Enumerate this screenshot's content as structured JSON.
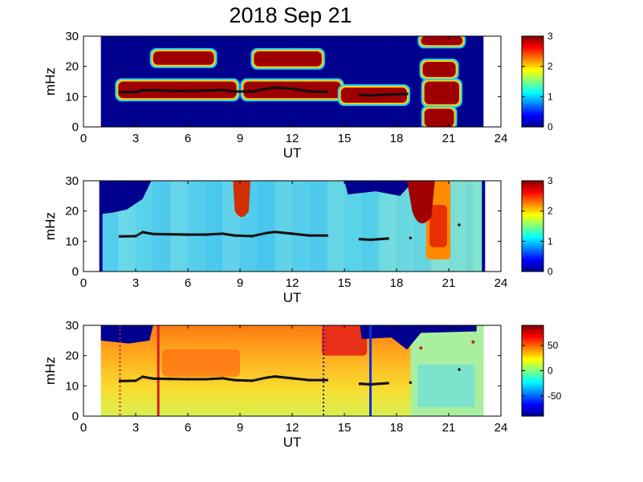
{
  "figure": {
    "title": "2018 Sep 21"
  },
  "chart_data": [
    {
      "type": "heatmap",
      "xlabel": "UT",
      "ylabel": "mHz",
      "xlim": [
        0,
        24
      ],
      "ylim": [
        0,
        30
      ],
      "xticks": [
        "0",
        "3",
        "6",
        "9",
        "12",
        "15",
        "18",
        "21",
        "24"
      ],
      "yticks": [
        "0",
        "10",
        "20",
        "30"
      ],
      "colorbar": {
        "min": 0,
        "max": 3,
        "ticks": [
          "0",
          "1",
          "2",
          "3"
        ]
      },
      "data_coverage_ut": [
        1,
        23
      ],
      "high_power_regions": [
        {
          "ut": [
            2.0,
            8.8
          ],
          "mhz": [
            9.5,
            15
          ],
          "value": 3
        },
        {
          "ut": [
            4.0,
            7.5
          ],
          "mhz": [
            20.5,
            25
          ],
          "value": 3
        },
        {
          "ut": [
            9.2,
            14.8
          ],
          "mhz": [
            9.5,
            15
          ],
          "value": 3
        },
        {
          "ut": [
            9.8,
            13.7
          ],
          "mhz": [
            20,
            25
          ],
          "value": 3
        },
        {
          "ut": [
            14.8,
            18.6
          ],
          "mhz": [
            8,
            13
          ],
          "value": 3
        },
        {
          "ut": [
            19.6,
            21.6
          ],
          "mhz": [
            7.5,
            15
          ],
          "value": 3
        },
        {
          "ut": [
            19.6,
            21.3
          ],
          "mhz": [
            0,
            6
          ],
          "value": 3
        },
        {
          "ut": [
            19.5,
            21.4
          ],
          "mhz": [
            16.5,
            21.5
          ],
          "value": 3
        },
        {
          "ut": [
            19.4,
            21.8
          ],
          "mhz": [
            27,
            30
          ],
          "value": 3
        }
      ],
      "frequency_trace": [
        [
          2.1,
          11.5
        ],
        [
          3.0,
          11.5
        ],
        [
          3.4,
          12.1
        ],
        [
          4.2,
          12.1
        ],
        [
          5.0,
          11.9
        ],
        [
          6.0,
          11.9
        ],
        [
          7.0,
          12.0
        ],
        [
          8.0,
          12.2
        ],
        [
          8.7,
          11.7
        ],
        [
          9.7,
          11.7
        ],
        [
          10.3,
          12.4
        ],
        [
          11.0,
          13.0
        ],
        [
          12.0,
          12.6
        ],
        [
          13.0,
          11.7
        ],
        [
          14.0,
          11.6
        ],
        [
          15.9,
          10.6
        ],
        [
          16.5,
          10.4
        ],
        [
          17.5,
          10.7
        ],
        [
          18.6,
          10.9
        ]
      ]
    },
    {
      "type": "heatmap",
      "xlabel": "UT",
      "ylabel": "mHz",
      "xlim": [
        0,
        24
      ],
      "ylim": [
        0,
        30
      ],
      "xticks": [
        "0",
        "3",
        "6",
        "9",
        "12",
        "15",
        "18",
        "21",
        "24"
      ],
      "yticks": [
        "0",
        "10",
        "20",
        "30"
      ],
      "colorbar": {
        "min": 0,
        "max": 3,
        "ticks": [
          "0",
          "1",
          "2",
          "3"
        ]
      },
      "data_coverage_ut": [
        1,
        23
      ],
      "high_power_regions": [
        {
          "ut": [
            8.6,
            9.6
          ],
          "mhz": [
            17,
            30
          ],
          "value": 3
        },
        {
          "ut": [
            18.6,
            20.2
          ],
          "mhz": [
            14,
            30
          ],
          "value": 3
        },
        {
          "ut": [
            19.7,
            21.1
          ],
          "mhz": [
            4,
            30
          ],
          "value": 2.5
        }
      ],
      "frequency_trace": [
        [
          2.1,
          11.6
        ],
        [
          3.0,
          11.7
        ],
        [
          3.4,
          13.0
        ],
        [
          4.0,
          12.4
        ],
        [
          5.0,
          12.3
        ],
        [
          6.0,
          12.2
        ],
        [
          7.0,
          12.2
        ],
        [
          8.0,
          12.5
        ],
        [
          8.7,
          11.9
        ],
        [
          9.7,
          11.7
        ],
        [
          10.5,
          12.7
        ],
        [
          11.0,
          13.1
        ],
        [
          12.0,
          12.5
        ],
        [
          13.0,
          11.9
        ],
        [
          14.0,
          11.9
        ],
        [
          15.9,
          10.7
        ],
        [
          16.5,
          10.5
        ],
        [
          17.5,
          10.9
        ],
        [
          18.8,
          11.1
        ],
        [
          21.6,
          15.4
        ]
      ]
    },
    {
      "type": "heatmap",
      "xlabel": "UT",
      "ylabel": "mHz",
      "xlim": [
        0,
        24
      ],
      "ylim": [
        0,
        30
      ],
      "xticks": [
        "0",
        "3",
        "6",
        "9",
        "12",
        "15",
        "18",
        "21",
        "24"
      ],
      "yticks": [
        "0",
        "10",
        "20",
        "30"
      ],
      "colorbar": {
        "min": -90,
        "max": 90,
        "ticks": [
          "-50",
          "0",
          "50"
        ]
      },
      "data_coverage_ut": [
        1,
        23
      ],
      "vertical_markers": [
        {
          "ut": 2.1,
          "style": "dotted",
          "color": "#cc2222"
        },
        {
          "ut": 4.3,
          "style": "solid",
          "color": "#d02020"
        },
        {
          "ut": 13.8,
          "style": "dotted",
          "color": "#1a1a88"
        },
        {
          "ut": 16.5,
          "style": "solid",
          "color": "#1030d0"
        }
      ],
      "frequency_trace": [
        [
          2.1,
          11.6
        ],
        [
          3.0,
          11.7
        ],
        [
          3.4,
          13.0
        ],
        [
          4.0,
          12.4
        ],
        [
          5.0,
          12.3
        ],
        [
          6.0,
          12.2
        ],
        [
          7.0,
          12.2
        ],
        [
          8.0,
          12.5
        ],
        [
          8.7,
          11.9
        ],
        [
          9.7,
          11.7
        ],
        [
          10.5,
          12.7
        ],
        [
          11.0,
          13.1
        ],
        [
          12.0,
          12.5
        ],
        [
          13.0,
          11.9
        ],
        [
          14.0,
          11.9
        ],
        [
          15.9,
          10.7
        ],
        [
          16.5,
          10.5
        ],
        [
          17.5,
          10.9
        ],
        [
          18.8,
          11.1
        ],
        [
          21.6,
          15.4
        ]
      ],
      "red_markers": [
        [
          19.4,
          22.5
        ],
        [
          22.4,
          24.5
        ]
      ]
    }
  ]
}
